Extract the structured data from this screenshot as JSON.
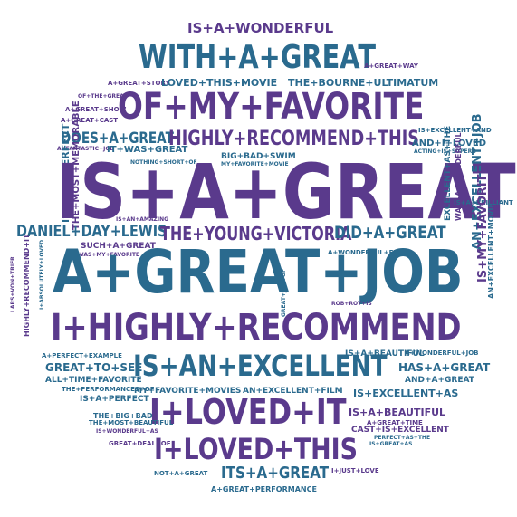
{
  "colors": {
    "purple": "#5a3a8c",
    "teal": "#2a6a8e"
  },
  "words": {
    "is_a_wonderful": "IS+A+WONDERFUL",
    "with_a_great": "WITH+A+GREAT",
    "a_great_way": "A+GREAT+WAY",
    "a_great_story": "A+GREAT+STORY",
    "loved_this_movie": "LOVED+THIS+MOVIE",
    "the_bourne_ultimatum": "THE+BOURNE+ULTIMATUM",
    "of_the_great": "OF+THE+GREAT",
    "a_great_show": "A+GREAT+SHOW",
    "a_great_cast": "A+GREAT+CAST",
    "of_my_favorite": "OF+MY+FAVORITE",
    "is_excellent_and": "IS+EXCELLENT+AND",
    "does_a_great": "DOES+A+GREAT",
    "highly_recommend_this": "HIGHLY+RECOMMEND+THIS",
    "and_i_loved": "AND+I+LOVED",
    "acting_is_superb": "ACTING+IS+SUPERB",
    "a_fantastic_job": "A+FANTASTIC+JOB",
    "it_was_great": "IT+WAS+GREAT",
    "nothing_short_of": "NOTHING+SHORT+OF",
    "big_bad_swim": "BIG+BAD+SWIM",
    "my_favorite_movie": "MY+FAVORITE+MOVIE",
    "is_the_perfect": "IS+THE+PERFECT",
    "the_most_memorable": "THE+MOST+MEMORABLE",
    "is_a_great_main": "IS+A+GREAT",
    "an_excellent_job": "AN+EXCELLENT+JOB",
    "excellent_as_the": "EXCELLENT+AS+THE",
    "was_a_wonderful": "WAS+A+WONDERFUL",
    "is_a_brilliant": "IS+A+BRILLIANT",
    "daniel_day_lewis": "DANIEL+DAY+LEWIS",
    "the_young_victoria": "THE+YOUNG+VICTORIA",
    "did_a_great": "DID+A+GREAT",
    "is_an_amazing": "IS+AN+AMAZING",
    "such_a_great": "SUCH+A+GREAT",
    "was_my_favorite": "WAS+MY+FAVORITE",
    "a_wonderful_film": "A+WONDERFUL+FILM",
    "is_my_favorite": "IS+MY+FAVORITE",
    "an_excellent_movie": "AN+EXCELLENT+MOVIE",
    "a_great_job": "A+GREAT+JOB",
    "lars_von_trier": "LARS+VON+TRIER",
    "i_absolutely_loved": "I+ABSOLUTELY+LOVED",
    "highly_recommend_it": "HIGHLY+RECOMMEND+IT",
    "great_job_of": "GREAT+JOB+OF",
    "rob_roy_is": "ROB+ROY+IS",
    "i_highly_recommend": "I+HIGHLY+RECOMMEND",
    "a_perfect_example": "A+PERFECT+EXAMPLE",
    "is_a_beautiful": "IS+A+BEAUTIFUL",
    "a_wonderful_job": "A+WONDERFUL+JOB",
    "great_to_see": "GREAT+TO+SEE",
    "is_an_excellent": "IS+AN+EXCELLENT",
    "has_a_great": "HAS+A+GREAT",
    "all_time_favorite": "ALL+TIME+FAVORITE",
    "and_a_great": "AND+A+GREAT",
    "the_performances_of": "THE+PERFORMANCES+OF",
    "my_favorite_movies": "MY+FAVORITE+MOVIES",
    "an_excellent_film": "AN+EXCELLENT+FILM",
    "is_excellent_as": "IS+EXCELLENT+AS",
    "is_a_perfect": "IS+A+PERFECT",
    "i_loved_it": "I+LOVED+IT",
    "the_big_bad": "THE+BIG+BAD",
    "the_most_beautiful": "THE+MOST+BEAUTIFUL",
    "is_wonderful_as": "IS+WONDERFUL+AS",
    "a_great_time": "A+GREAT+TIME",
    "cast_is_excellent": "CAST+IS+EXCELLENT",
    "perfect_as_the": "PERFECT+AS+THE",
    "is_great_as": "IS+GREAT+AS",
    "great_deal_of": "GREAT+DEAL+OF",
    "i_loved_this": "I+LOVED+THIS",
    "not_a_great": "NOT+A+GREAT",
    "its_a_great": "ITS+A+GREAT",
    "i_just_love": "I+JUST+LOVE",
    "a_great_performance": "A+GREAT+PERFORMANCE"
  }
}
